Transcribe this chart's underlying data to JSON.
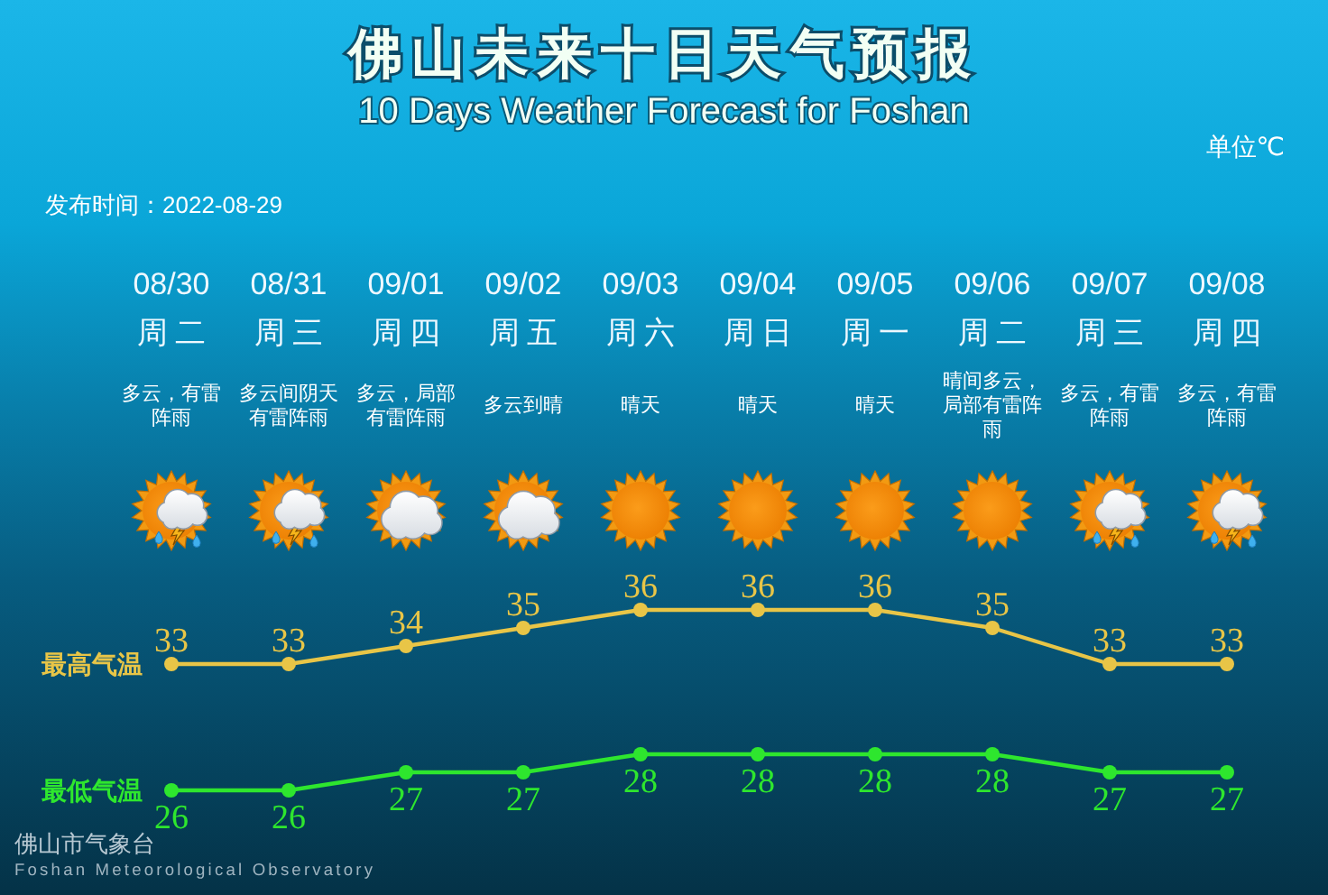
{
  "chart_data": {
    "type": "line",
    "title": "佛山未来十日天气预报",
    "subtitle": "10 Days Weather Forecast for Foshan",
    "categories": [
      "08/30",
      "08/31",
      "09/01",
      "09/02",
      "09/03",
      "09/04",
      "09/05",
      "09/06",
      "09/07",
      "09/08"
    ],
    "series": [
      {
        "name": "最高气温",
        "color": "#e8c547",
        "values": [
          33,
          33,
          34,
          35,
          36,
          36,
          36,
          35,
          33,
          33
        ]
      },
      {
        "name": "最低气温",
        "color": "#2ee62e",
        "values": [
          26,
          26,
          27,
          27,
          28,
          28,
          28,
          28,
          27,
          27
        ]
      }
    ],
    "annotations": [
      "单位℃",
      "发布时间：2022-08-29",
      "周二",
      "多云，有雷阵雨",
      "周三",
      "多云间阴天有雷阵雨",
      "周四",
      "多云，局部有雷阵雨",
      "周五",
      "多云到晴",
      "周六",
      "晴天",
      "周日",
      "晴天",
      "周一",
      "晴天",
      "周二",
      "晴间多云，局部有雷阵雨",
      "周三",
      "多云，有雷阵雨",
      "周四",
      "多云，有雷阵雨",
      "佛山市气象台",
      "Foshan Meteorological Observatory"
    ],
    "data_labels": true,
    "marker": "circle",
    "line_style": "solid",
    "tick_labels": "x"
  }
}
